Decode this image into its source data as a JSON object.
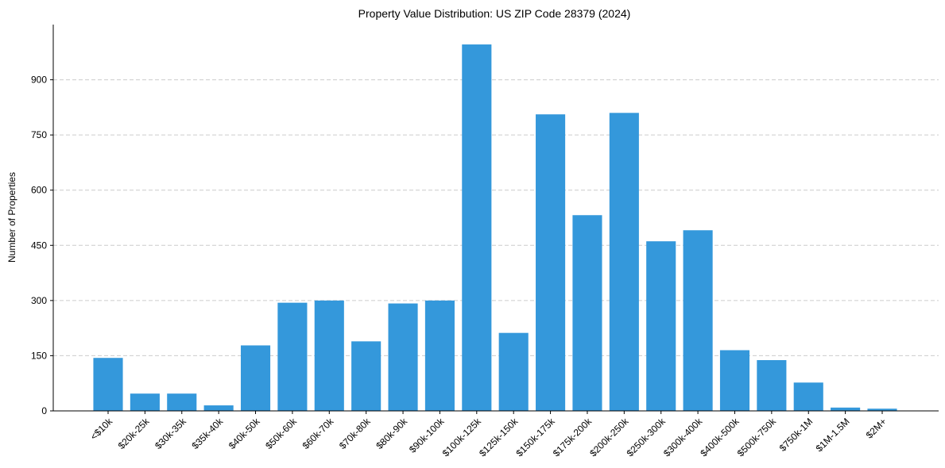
{
  "chart_data": {
    "type": "bar",
    "title": "Property Value Distribution: US ZIP Code 28379 (2024)",
    "xlabel": "",
    "ylabel": "Number of Properties",
    "ylim": [
      0,
      1050
    ],
    "yticks": [
      0,
      150,
      300,
      450,
      600,
      750,
      900
    ],
    "grid": "y-dashed",
    "bar_color": "#3498db",
    "categories": [
      "<$10k",
      "$20k-25k",
      "$30k-35k",
      "$35k-40k",
      "$40k-50k",
      "$50k-60k",
      "$60k-70k",
      "$70k-80k",
      "$80k-90k",
      "$90k-100k",
      "$100k-125k",
      "$125k-150k",
      "$150k-175k",
      "$175k-200k",
      "$200k-250k",
      "$250k-300k",
      "$300k-400k",
      "$400k-500k",
      "$500k-750k",
      "$750k-1M",
      "$1M-1.5M",
      "$2M+"
    ],
    "values": [
      144,
      47,
      47,
      15,
      178,
      294,
      300,
      189,
      292,
      300,
      996,
      212,
      806,
      532,
      810,
      461,
      491,
      165,
      138,
      77,
      9,
      6
    ]
  }
}
